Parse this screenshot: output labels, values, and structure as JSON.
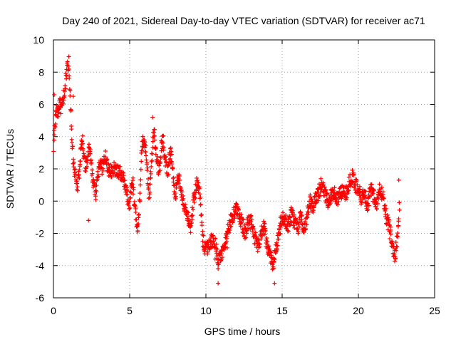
{
  "chart_data": {
    "type": "scatter",
    "title": "Day 240 of 2021, Sidereal Day-to-day VTEC variation (SDTVAR) for receiver ac71",
    "xlabel": "GPS time / hours",
    "ylabel": "SDTVAR / TECUs",
    "xlim": [
      0,
      25
    ],
    "ylim": [
      -6,
      10
    ],
    "xticks": [
      0,
      5,
      10,
      15,
      20,
      25
    ],
    "yticks": [
      -6,
      -4,
      -2,
      0,
      2,
      4,
      6,
      8,
      10
    ],
    "xtick_labels": [
      "0",
      "5",
      "10",
      "15",
      "20",
      "25"
    ],
    "ytick_labels": [
      "-6",
      "-4",
      "-2",
      "0",
      "2",
      "4",
      "6",
      "8",
      "10"
    ],
    "grid": true,
    "marker": "+",
    "series": [
      {
        "name": "SDTVAR",
        "color": "#ff0000",
        "trend": [
          [
            0.0,
            3.2
          ],
          [
            0.1,
            4.8
          ],
          [
            0.2,
            5.6
          ],
          [
            0.3,
            5.2
          ],
          [
            0.4,
            6.0
          ],
          [
            0.5,
            5.8
          ],
          [
            0.6,
            6.3
          ],
          [
            0.7,
            6.8
          ],
          [
            0.8,
            7.5
          ],
          [
            0.9,
            8.3
          ],
          [
            1.0,
            8.6
          ],
          [
            1.1,
            6.5
          ],
          [
            1.2,
            4.0
          ],
          [
            1.3,
            2.5
          ],
          [
            1.4,
            1.8
          ],
          [
            1.5,
            1.2
          ],
          [
            1.6,
            0.9
          ],
          [
            1.7,
            2.0
          ],
          [
            1.8,
            3.2
          ],
          [
            1.9,
            3.6
          ],
          [
            2.0,
            2.8
          ],
          [
            2.1,
            2.0
          ],
          [
            2.2,
            2.5
          ],
          [
            2.3,
            3.2
          ],
          [
            2.4,
            3.0
          ],
          [
            2.5,
            2.2
          ],
          [
            2.6,
            1.2
          ],
          [
            2.7,
            0.8
          ],
          [
            2.8,
            0.4
          ],
          [
            2.9,
            1.5
          ],
          [
            3.0,
            2.3
          ],
          [
            3.2,
            2.1
          ],
          [
            3.4,
            2.8
          ],
          [
            3.6,
            2.0
          ],
          [
            3.8,
            1.8
          ],
          [
            4.0,
            2.0
          ],
          [
            4.2,
            1.9
          ],
          [
            4.4,
            1.7
          ],
          [
            4.6,
            1.3
          ],
          [
            4.8,
            0.5
          ],
          [
            5.0,
            -0.2
          ],
          [
            5.1,
            0.6
          ],
          [
            5.2,
            1.2
          ],
          [
            5.3,
            0.0
          ],
          [
            5.4,
            -0.8
          ],
          [
            5.5,
            -1.8
          ],
          [
            5.6,
            -1.0
          ],
          [
            5.7,
            1.0
          ],
          [
            5.8,
            3.5
          ],
          [
            5.9,
            3.7
          ],
          [
            6.0,
            3.5
          ],
          [
            6.1,
            2.8
          ],
          [
            6.2,
            1.2
          ],
          [
            6.3,
            0.2
          ],
          [
            6.4,
            1.8
          ],
          [
            6.5,
            3.5
          ],
          [
            6.6,
            4.5
          ],
          [
            6.7,
            3.0
          ],
          [
            6.8,
            2.5
          ],
          [
            6.9,
            2.0
          ],
          [
            7.0,
            2.4
          ],
          [
            7.1,
            3.5
          ],
          [
            7.2,
            3.8
          ],
          [
            7.3,
            2.8
          ],
          [
            7.4,
            2.2
          ],
          [
            7.5,
            1.8
          ],
          [
            7.6,
            2.6
          ],
          [
            7.7,
            3.0
          ],
          [
            7.8,
            2.0
          ],
          [
            7.9,
            1.0
          ],
          [
            8.0,
            0.5
          ],
          [
            8.2,
            1.6
          ],
          [
            8.4,
            0.6
          ],
          [
            8.6,
            -0.4
          ],
          [
            8.8,
            -1.0
          ],
          [
            9.0,
            -1.8
          ],
          [
            9.2,
            0.2
          ],
          [
            9.4,
            1.0
          ],
          [
            9.6,
            0.8
          ],
          [
            9.8,
            -2.5
          ],
          [
            10.0,
            -3.0
          ],
          [
            10.2,
            -2.8
          ],
          [
            10.4,
            -2.4
          ],
          [
            10.6,
            -2.6
          ],
          [
            10.8,
            -3.6
          ],
          [
            11.0,
            -3.5
          ],
          [
            11.2,
            -2.8
          ],
          [
            11.5,
            -1.6
          ],
          [
            11.8,
            -0.8
          ],
          [
            12.0,
            -0.5
          ],
          [
            12.2,
            -0.9
          ],
          [
            12.4,
            -1.5
          ],
          [
            12.6,
            -2.0
          ],
          [
            12.8,
            -1.2
          ],
          [
            13.0,
            -1.4
          ],
          [
            13.2,
            -2.2
          ],
          [
            13.4,
            -2.8
          ],
          [
            13.6,
            -2.0
          ],
          [
            13.8,
            -1.5
          ],
          [
            14.0,
            -2.8
          ],
          [
            14.2,
            -3.4
          ],
          [
            14.4,
            -4.0
          ],
          [
            14.6,
            -3.0
          ],
          [
            14.8,
            -2.0
          ],
          [
            15.0,
            -1.0
          ],
          [
            15.2,
            -1.2
          ],
          [
            15.4,
            -1.5
          ],
          [
            15.6,
            -0.8
          ],
          [
            15.8,
            -1.2
          ],
          [
            16.0,
            -1.8
          ],
          [
            16.2,
            -1.0
          ],
          [
            16.4,
            -1.6
          ],
          [
            16.6,
            -1.2
          ],
          [
            16.8,
            0.0
          ],
          [
            17.0,
            -0.4
          ],
          [
            17.2,
            0.2
          ],
          [
            17.4,
            0.5
          ],
          [
            17.6,
            1.2
          ],
          [
            17.8,
            0.4
          ],
          [
            18.0,
            0.0
          ],
          [
            18.2,
            0.3
          ],
          [
            18.4,
            0.6
          ],
          [
            18.6,
            0.0
          ],
          [
            18.8,
            0.4
          ],
          [
            19.0,
            0.8
          ],
          [
            19.2,
            0.5
          ],
          [
            19.4,
            1.2
          ],
          [
            19.6,
            1.6
          ],
          [
            19.8,
            1.0
          ],
          [
            20.0,
            0.8
          ],
          [
            20.2,
            0.2
          ],
          [
            20.4,
            0.6
          ],
          [
            20.6,
            -0.4
          ],
          [
            20.8,
            0.8
          ],
          [
            21.0,
            0.3
          ],
          [
            21.2,
            -0.2
          ],
          [
            21.4,
            0.8
          ],
          [
            21.6,
            0.4
          ],
          [
            21.8,
            -0.8
          ],
          [
            22.0,
            -1.6
          ],
          [
            22.2,
            -2.6
          ],
          [
            22.4,
            -3.4
          ],
          [
            22.6,
            -2.0
          ],
          [
            22.7,
            0.2
          ]
        ],
        "outliers": [
          [
            2.3,
            -1.2
          ],
          [
            10.6,
            -3.6
          ],
          [
            10.8,
            -4.2
          ],
          [
            10.8,
            -5.1
          ],
          [
            11.4,
            -2.9
          ],
          [
            14.5,
            -5.1
          ],
          [
            6.5,
            5.2
          ],
          [
            0.05,
            6.6
          ],
          [
            1.3,
            6.5
          ],
          [
            22.65,
            1.3
          ]
        ]
      }
    ]
  }
}
